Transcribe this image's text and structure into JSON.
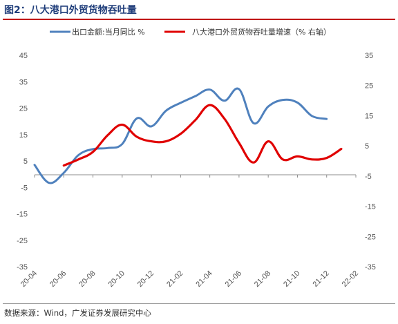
{
  "title": "图2：八大港口外贸货物吞吐量",
  "source": "数据来源：Wind，广发证券发展研究中心",
  "chart_data": {
    "type": "line",
    "x_ticks": [
      "20-04",
      "20-06",
      "20-08",
      "20-10",
      "20-12",
      "21-02",
      "21-04",
      "21-06",
      "21-08",
      "21-10",
      "21-12",
      "22-02"
    ],
    "left_axis": {
      "ylim": [
        -35,
        45
      ],
      "ticks": [
        "45",
        "35",
        "25",
        "15",
        "5",
        "-5",
        "-15",
        "-25",
        "-35"
      ]
    },
    "right_axis": {
      "ylim": [
        -35,
        35
      ],
      "ticks": [
        "35",
        "25",
        "15",
        "5",
        "-5",
        "-15",
        "-25",
        "-35"
      ]
    },
    "legend_position": "top",
    "grid": false,
    "series": [
      {
        "name": "出口金额:当月同比 %",
        "axis": "left",
        "color": "#4f81bd",
        "points": [
          [
            "2020-04",
            3.5
          ],
          [
            "2020-05",
            -3.3
          ],
          [
            "2020-06",
            0.5
          ],
          [
            "2020-07",
            7.2
          ],
          [
            "2020-08",
            9.5
          ],
          [
            "2020-09",
            9.9
          ],
          [
            "2020-10",
            11.4
          ],
          [
            "2020-11",
            21.1
          ],
          [
            "2020-12",
            18.1
          ],
          [
            "2021-01",
            24.0
          ],
          [
            "2021-02",
            27.0
          ],
          [
            "2021-03",
            29.5
          ],
          [
            "2021-04",
            32.0
          ],
          [
            "2021-05",
            27.8
          ],
          [
            "2021-06",
            32.2
          ],
          [
            "2021-07",
            19.3
          ],
          [
            "2021-08",
            25.6
          ],
          [
            "2021-09",
            28.1
          ],
          [
            "2021-10",
            27.1
          ],
          [
            "2021-11",
            22.0
          ],
          [
            "2021-12",
            20.9
          ]
        ]
      },
      {
        "name": "八大港口外贸货物吞吐量增速（% 右轴）",
        "axis": "right",
        "color": "#e00000",
        "points": [
          [
            "2020-06",
            -1.5
          ],
          [
            "2020-07",
            0.5
          ],
          [
            "2020-08",
            3.0
          ],
          [
            "2020-09",
            8.5
          ],
          [
            "2020-10",
            12.0
          ],
          [
            "2020-11",
            8.0
          ],
          [
            "2020-12",
            6.5
          ],
          [
            "2021-01",
            6.5
          ],
          [
            "2021-02",
            9.0
          ],
          [
            "2021-03",
            13.5
          ],
          [
            "2021-04",
            18.5
          ],
          [
            "2021-05",
            14.0
          ],
          [
            "2021-06",
            6.0
          ],
          [
            "2021-07",
            -0.5
          ],
          [
            "2021-08",
            6.5
          ],
          [
            "2021-09",
            0.5
          ],
          [
            "2021-10",
            1.5
          ],
          [
            "2021-11",
            0.5
          ],
          [
            "2021-12",
            1.0
          ],
          [
            "2022-01",
            4.0
          ]
        ]
      }
    ]
  }
}
